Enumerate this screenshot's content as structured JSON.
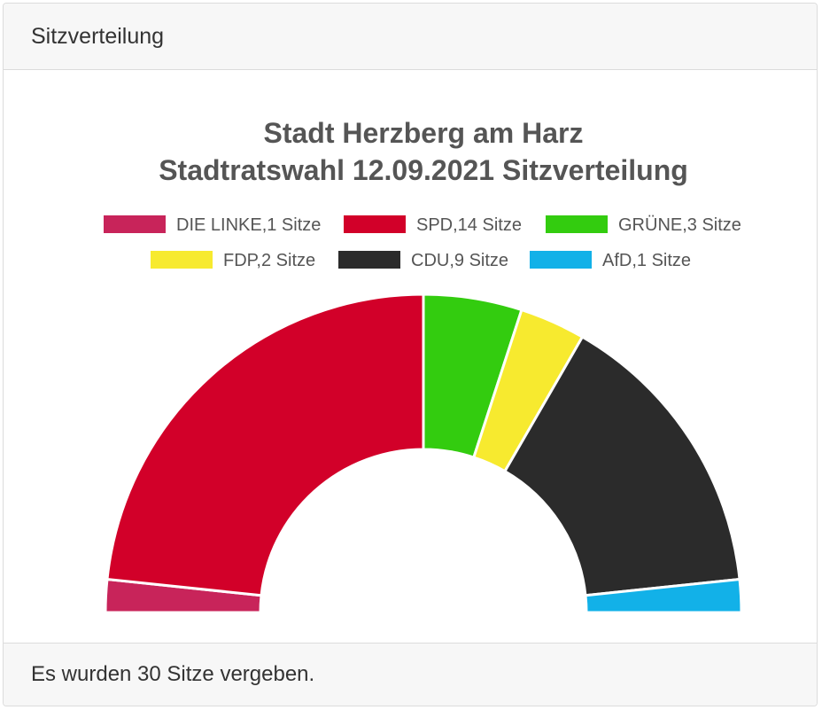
{
  "panel": {
    "header": "Sitzverteilung",
    "footer": "Es wurden 30 Sitze vergeben."
  },
  "chart_data": {
    "type": "pie",
    "subtype": "parliament-semicircle",
    "title": [
      "Stadt Herzberg am Harz",
      "Stadtratswahl 12.09.2021 Sitzverteilung"
    ],
    "total_seats": 30,
    "legend_position": "top",
    "slices": [
      {
        "name": "DIE LINKE",
        "value": 1,
        "label": "DIE LINKE,1 Sitze",
        "color": "#c8245a"
      },
      {
        "name": "SPD",
        "value": 14,
        "label": "SPD,14 Sitze",
        "color": "#d20029"
      },
      {
        "name": "GRÜNE",
        "value": 3,
        "label": "GRÜNE,3 Sitze",
        "color": "#33cc0f"
      },
      {
        "name": "FDP",
        "value": 2,
        "label": "FDP,2 Sitze",
        "color": "#f7ea2f"
      },
      {
        "name": "CDU",
        "value": 9,
        "label": "CDU,9 Sitze",
        "color": "#2b2b2b"
      },
      {
        "name": "AfD",
        "value": 1,
        "label": "AfD,1 Sitze",
        "color": "#12b1e8"
      }
    ]
  }
}
